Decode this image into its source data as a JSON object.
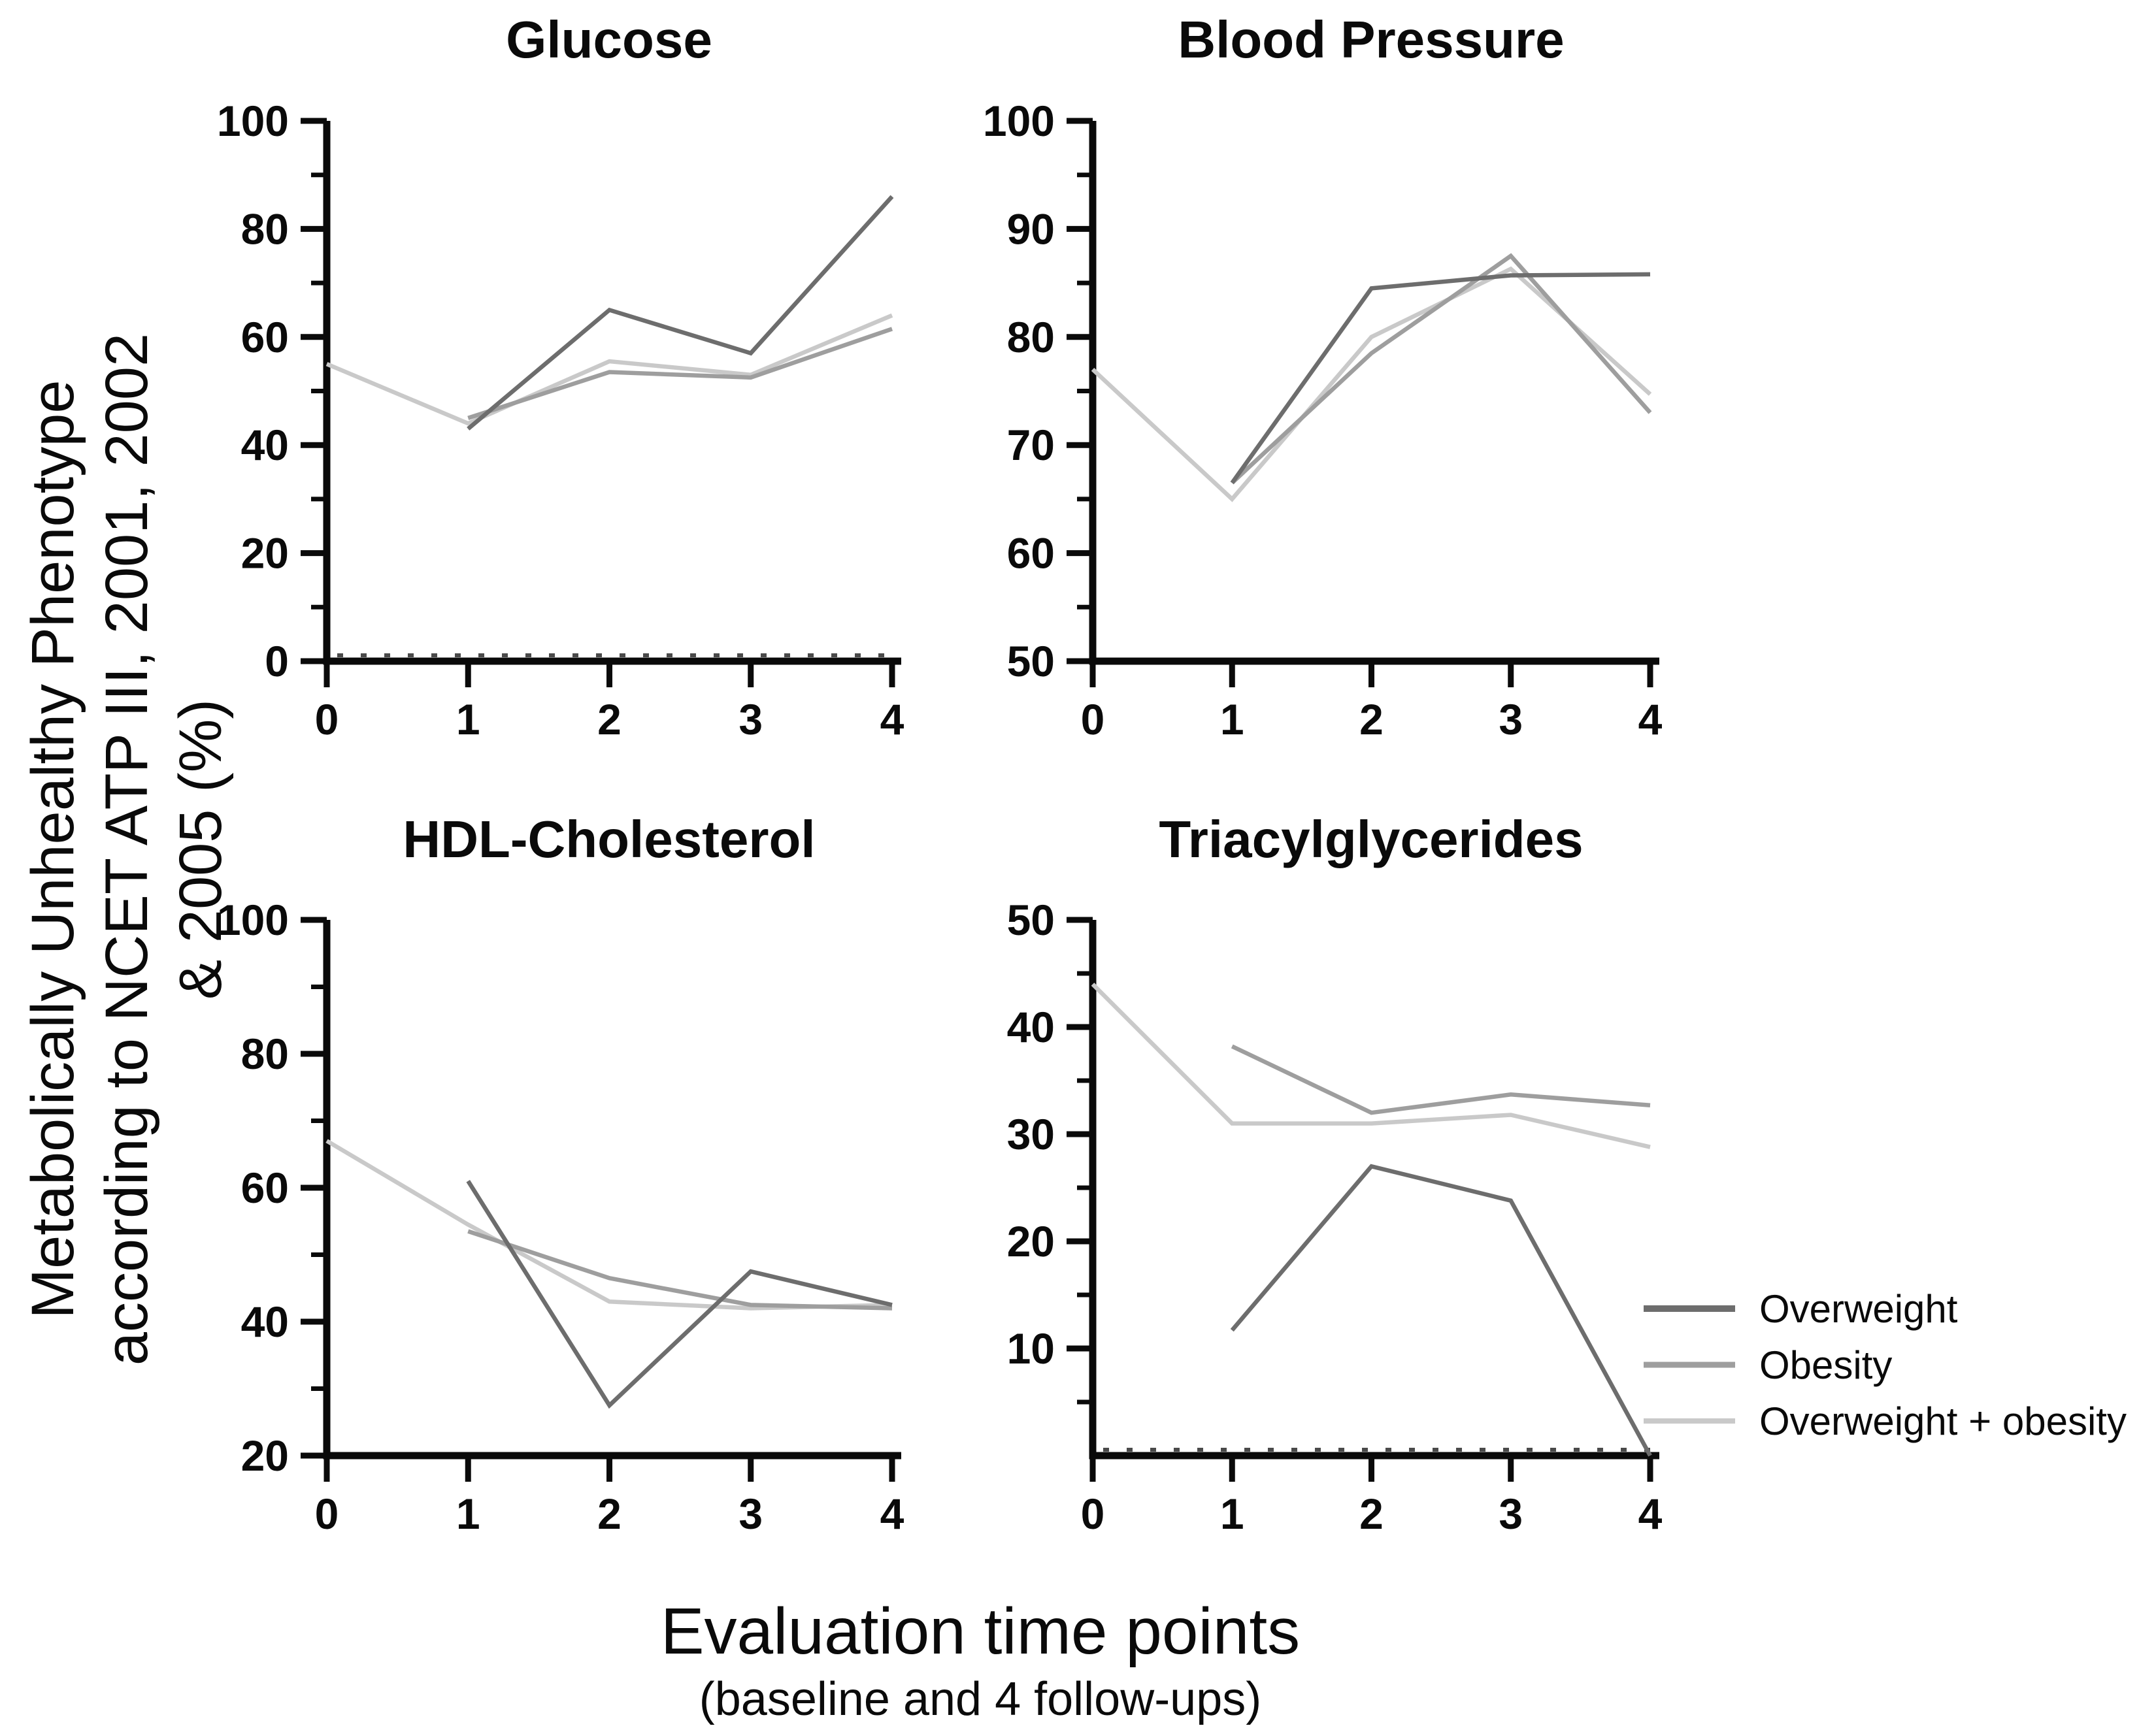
{
  "figure": {
    "ylabel_lines": [
      "Metabolically Unhealthy Phenotype",
      "according to NCET ATP III, 2001, 2002",
      "& 2005 (%)"
    ],
    "xlabel": "Evaluation time points",
    "xlabel_sub": "(baseline and 4 follow-ups)"
  },
  "legend": {
    "position": "right-bottom",
    "items": [
      {
        "label": "Overweight",
        "color": "#6d6d6d"
      },
      {
        "label": "Obesity",
        "color": "#9e9e9e"
      },
      {
        "label": "Overweight + obesity",
        "color": "#c9c9c9"
      }
    ]
  },
  "chart_data": [
    {
      "type": "line",
      "title": "Glucose",
      "xlim": [
        0,
        4
      ],
      "ylim": [
        0,
        100
      ],
      "x": [
        0,
        1,
        2,
        3,
        4
      ],
      "yticks_major": [
        0,
        20,
        40,
        60,
        80,
        100
      ],
      "yticks_minor": [
        10,
        30,
        50,
        70,
        90
      ],
      "baseline_dotted": true,
      "grid": false,
      "series": [
        {
          "name": "Overweight",
          "color": "#6d6d6d",
          "points": [
            [
              1,
              43
            ],
            [
              2,
              65
            ],
            [
              3,
              57
            ],
            [
              4,
              86
            ]
          ]
        },
        {
          "name": "Obesity",
          "color": "#9e9e9e",
          "points": [
            [
              1,
              45
            ],
            [
              2,
              53.5
            ],
            [
              3,
              52.5
            ],
            [
              4,
              61.5
            ]
          ]
        },
        {
          "name": "Overweight + obesity",
          "color": "#c9c9c9",
          "points": [
            [
              0,
              55
            ],
            [
              1,
              44
            ],
            [
              2,
              55.5
            ],
            [
              3,
              53
            ],
            [
              4,
              64
            ]
          ]
        }
      ]
    },
    {
      "type": "line",
      "title": "Blood Pressure",
      "xlim": [
        0,
        4
      ],
      "ylim": [
        50,
        100
      ],
      "x": [
        0,
        1,
        2,
        3,
        4
      ],
      "yticks_major": [
        50,
        60,
        70,
        80,
        90,
        100
      ],
      "yticks_minor": [
        55,
        65,
        75,
        85,
        95
      ],
      "baseline_dotted": false,
      "grid": false,
      "series": [
        {
          "name": "Overweight",
          "color": "#6d6d6d",
          "points": [
            [
              1,
              66.5
            ],
            [
              2,
              84.5
            ],
            [
              3,
              85.7
            ],
            [
              4,
              85.8
            ]
          ]
        },
        {
          "name": "Obesity",
          "color": "#9e9e9e",
          "points": [
            [
              1,
              66.5
            ],
            [
              2,
              78.5
            ],
            [
              3,
              87.5
            ],
            [
              4,
              73
            ]
          ]
        },
        {
          "name": "Overweight + obesity",
          "color": "#c9c9c9",
          "points": [
            [
              0,
              77
            ],
            [
              1,
              65
            ],
            [
              2,
              80
            ],
            [
              3,
              86.3
            ],
            [
              4,
              74.7
            ]
          ]
        }
      ]
    },
    {
      "type": "line",
      "title": "HDL-Cholesterol",
      "xlim": [
        0,
        4
      ],
      "ylim": [
        20,
        100
      ],
      "x": [
        0,
        1,
        2,
        3,
        4
      ],
      "yticks_major": [
        20,
        40,
        60,
        80,
        100
      ],
      "yticks_minor": [
        30,
        50,
        70,
        90
      ],
      "baseline_dotted": false,
      "grid": false,
      "series": [
        {
          "name": "Overweight",
          "color": "#6d6d6d",
          "points": [
            [
              1,
              61
            ],
            [
              2,
              27.5
            ],
            [
              3,
              47.5
            ],
            [
              4,
              42.5
            ]
          ]
        },
        {
          "name": "Obesity",
          "color": "#9e9e9e",
          "points": [
            [
              1,
              53.5
            ],
            [
              2,
              46.5
            ],
            [
              3,
              42.5
            ],
            [
              4,
              42
            ]
          ]
        },
        {
          "name": "Overweight + obesity",
          "color": "#c9c9c9",
          "points": [
            [
              0,
              67
            ],
            [
              1,
              54.5
            ],
            [
              2,
              43
            ],
            [
              3,
              42
            ],
            [
              4,
              42.5
            ]
          ]
        }
      ]
    },
    {
      "type": "line",
      "title": "Triacylglycerides",
      "xlim": [
        0,
        4
      ],
      "ylim": [
        0,
        50
      ],
      "x": [
        0,
        1,
        2,
        3,
        4
      ],
      "yticks_major": [
        10,
        20,
        30,
        40,
        50
      ],
      "yticks_minor": [
        5,
        15,
        25,
        35,
        45
      ],
      "baseline_dotted": true,
      "grid": false,
      "series": [
        {
          "name": "Overweight",
          "color": "#6d6d6d",
          "points": [
            [
              1,
              11.7
            ],
            [
              2,
              27
            ],
            [
              3,
              23.8
            ],
            [
              4,
              0
            ]
          ]
        },
        {
          "name": "Obesity",
          "color": "#9e9e9e",
          "points": [
            [
              1,
              38.2
            ],
            [
              2,
              32
            ],
            [
              3,
              33.7
            ],
            [
              4,
              32.7
            ]
          ]
        },
        {
          "name": "Overweight + obesity",
          "color": "#c9c9c9",
          "points": [
            [
              0,
              44
            ],
            [
              1,
              31
            ],
            [
              2,
              31
            ],
            [
              3,
              31.8
            ],
            [
              4,
              28.8
            ]
          ]
        }
      ]
    }
  ]
}
